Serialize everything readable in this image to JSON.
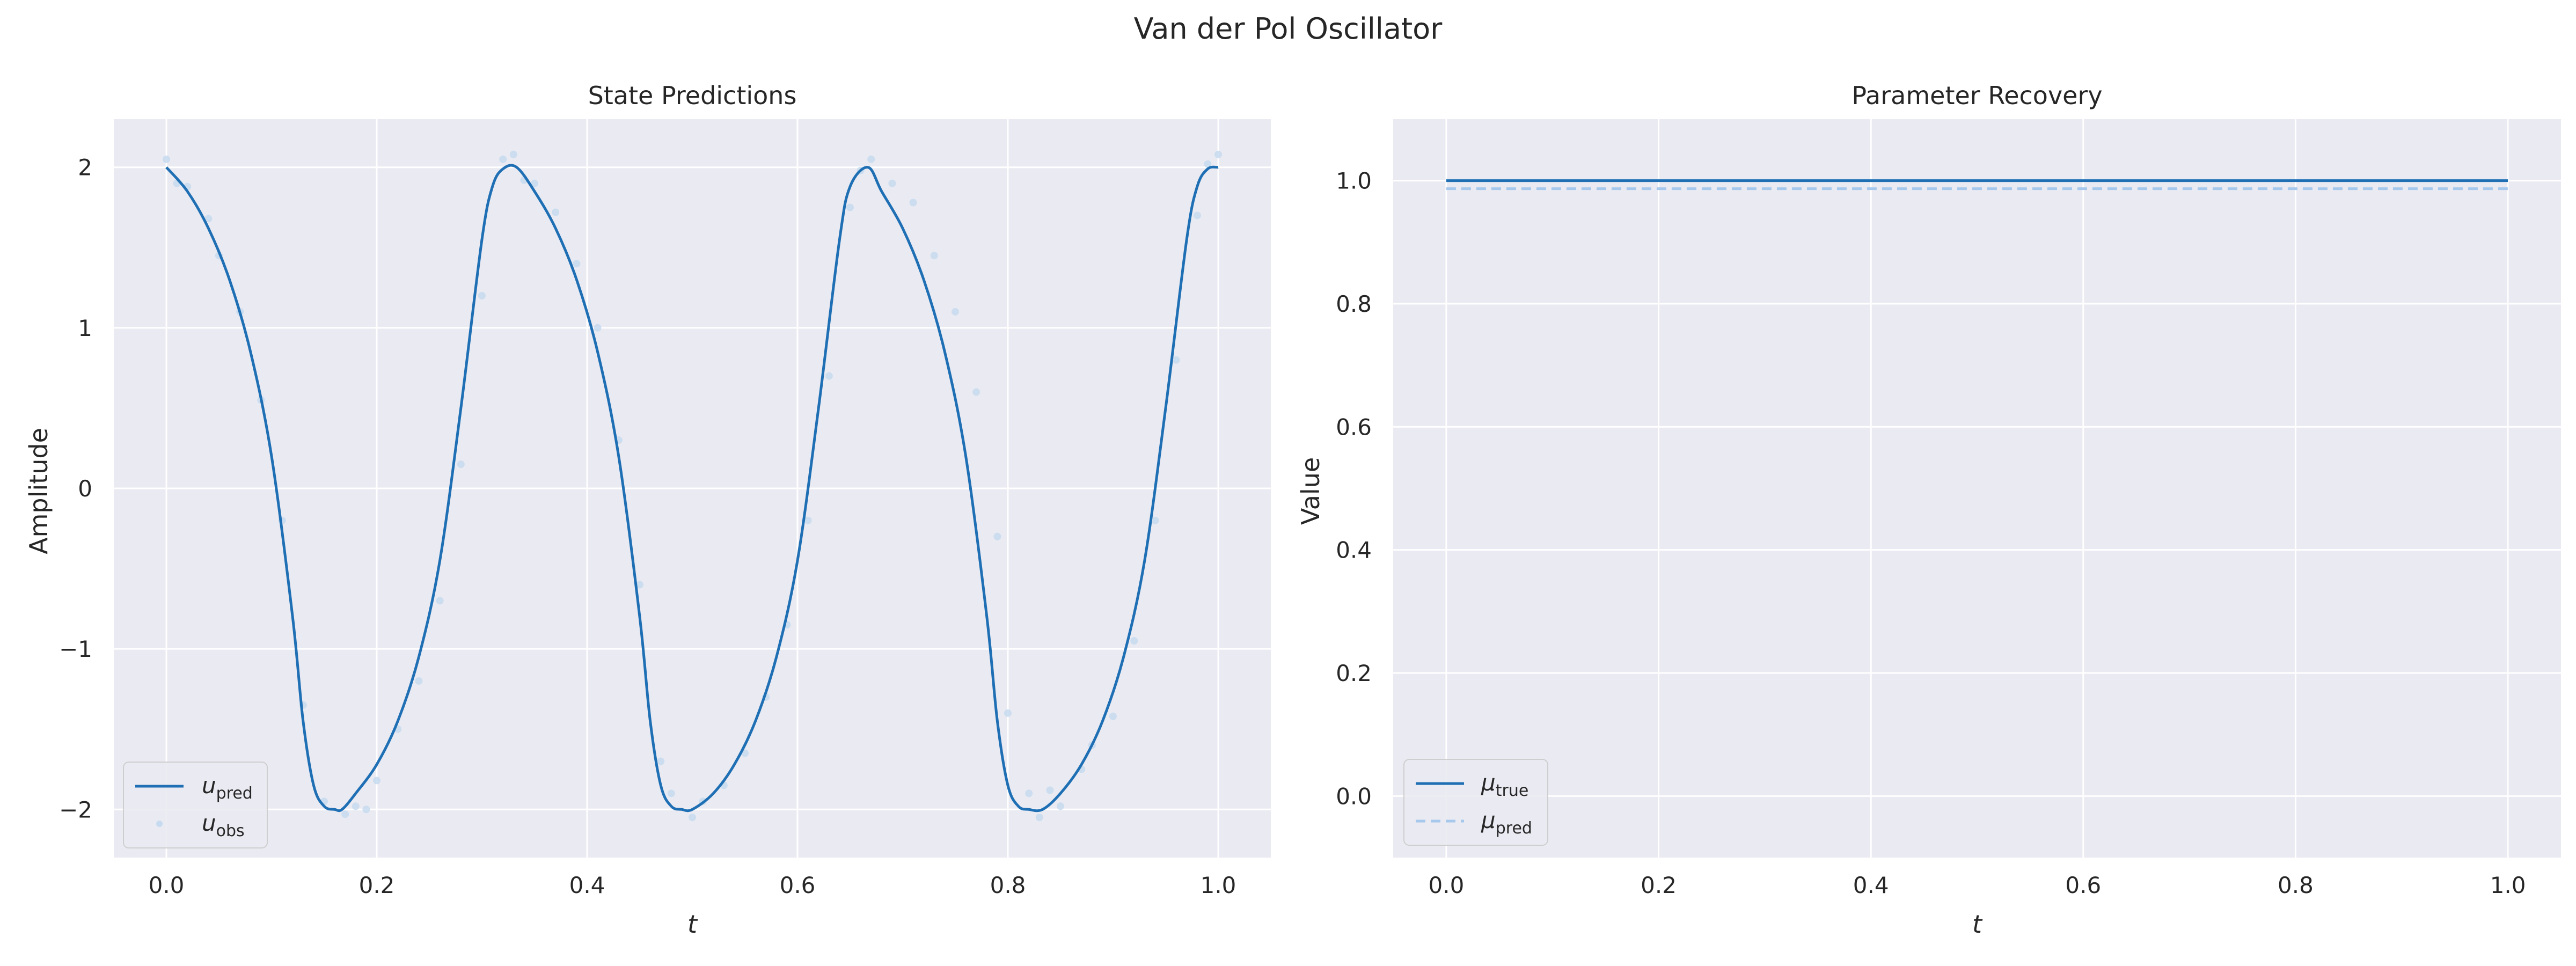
{
  "figure": {
    "suptitle": "Van der Pol Oscillator"
  },
  "colors": {
    "background": "#eaeaf2",
    "grid": "#ffffff",
    "pred_line": "#1f6fb4",
    "obs_points": "#c6dbef",
    "mu_true": "#1f6fb4",
    "mu_pred": "#a6c8ec"
  },
  "chart_data": [
    {
      "type": "line",
      "title": "State Predictions",
      "xlabel": "t",
      "ylabel": "Amplitude",
      "xlim": [
        -0.05,
        1.05
      ],
      "ylim": [
        -2.3,
        2.3
      ],
      "xticks": [
        0.0,
        0.2,
        0.4,
        0.6,
        0.8,
        1.0
      ],
      "xtick_labels": [
        "0.0",
        "0.2",
        "0.4",
        "0.6",
        "0.8",
        "1.0"
      ],
      "yticks": [
        -2,
        -1,
        0,
        1,
        2
      ],
      "ytick_labels": [
        "−2",
        "−1",
        "0",
        "1",
        "2"
      ],
      "grid": true,
      "legend": {
        "placement": "lower-left",
        "entries": [
          {
            "base": "u",
            "sub": "pred",
            "style": "line"
          },
          {
            "base": "u",
            "sub": "obs",
            "style": "points"
          }
        ]
      },
      "series": [
        {
          "role": "prediction",
          "x": [
            0.0,
            0.02,
            0.04,
            0.06,
            0.08,
            0.1,
            0.12,
            0.13,
            0.14,
            0.15,
            0.16,
            0.167,
            0.18,
            0.2,
            0.22,
            0.24,
            0.26,
            0.28,
            0.3,
            0.31,
            0.32,
            0.333,
            0.35,
            0.37,
            0.39,
            0.41,
            0.43,
            0.45,
            0.46,
            0.47,
            0.48,
            0.49,
            0.5,
            0.52,
            0.54,
            0.56,
            0.58,
            0.6,
            0.62,
            0.64,
            0.65,
            0.667,
            0.68,
            0.7,
            0.72,
            0.74,
            0.76,
            0.78,
            0.79,
            0.8,
            0.81,
            0.82,
            0.833,
            0.85,
            0.87,
            0.89,
            0.91,
            0.93,
            0.95,
            0.97,
            0.98,
            0.99,
            1.0
          ],
          "y": [
            2.0,
            1.85,
            1.62,
            1.3,
            0.85,
            0.2,
            -0.8,
            -1.45,
            -1.85,
            -1.98,
            -2.0,
            -2.0,
            -1.9,
            -1.72,
            -1.45,
            -1.05,
            -0.45,
            0.5,
            1.55,
            1.88,
            1.99,
            2.0,
            1.85,
            1.62,
            1.3,
            0.85,
            0.2,
            -0.8,
            -1.45,
            -1.85,
            -1.98,
            -2.0,
            -2.0,
            -1.9,
            -1.72,
            -1.45,
            -1.05,
            -0.45,
            0.5,
            1.55,
            1.88,
            2.0,
            1.85,
            1.62,
            1.3,
            0.85,
            0.2,
            -0.8,
            -1.45,
            -1.85,
            -1.98,
            -2.0,
            -2.0,
            -1.9,
            -1.72,
            -1.45,
            -1.05,
            -0.45,
            0.5,
            1.55,
            1.88,
            1.99,
            2.0
          ]
        },
        {
          "role": "observations",
          "x": [
            0.0,
            0.01,
            0.02,
            0.04,
            0.05,
            0.07,
            0.09,
            0.11,
            0.13,
            0.15,
            0.17,
            0.18,
            0.19,
            0.2,
            0.22,
            0.24,
            0.26,
            0.28,
            0.3,
            0.32,
            0.33,
            0.34,
            0.35,
            0.37,
            0.39,
            0.41,
            0.43,
            0.45,
            0.47,
            0.48,
            0.5,
            0.51,
            0.53,
            0.55,
            0.57,
            0.59,
            0.61,
            0.63,
            0.65,
            0.66,
            0.67,
            0.69,
            0.71,
            0.73,
            0.75,
            0.77,
            0.79,
            0.8,
            0.82,
            0.83,
            0.84,
            0.85,
            0.87,
            0.88,
            0.9,
            0.92,
            0.94,
            0.96,
            0.98,
            0.99,
            1.0
          ],
          "y": [
            2.05,
            1.9,
            1.88,
            1.68,
            1.45,
            1.1,
            0.55,
            -0.2,
            -1.35,
            -1.95,
            -2.03,
            -1.98,
            -2.0,
            -1.82,
            -1.5,
            -1.2,
            -0.7,
            0.15,
            1.2,
            2.05,
            2.08,
            1.92,
            1.9,
            1.72,
            1.4,
            1.0,
            0.3,
            -0.6,
            -1.7,
            -1.9,
            -2.05,
            -1.95,
            -1.85,
            -1.65,
            -1.3,
            -0.85,
            -0.2,
            0.7,
            1.75,
            1.98,
            2.05,
            1.9,
            1.78,
            1.45,
            1.1,
            0.6,
            -0.3,
            -1.4,
            -1.9,
            -2.05,
            -1.88,
            -1.98,
            -1.75,
            -1.6,
            -1.42,
            -0.95,
            -0.2,
            0.8,
            1.7,
            2.02,
            2.08
          ]
        }
      ]
    },
    {
      "type": "line",
      "title": "Parameter Recovery",
      "xlabel": "t",
      "ylabel": "Value",
      "xlim": [
        -0.05,
        1.05
      ],
      "ylim": [
        -0.1,
        1.1
      ],
      "xticks": [
        0.0,
        0.2,
        0.4,
        0.6,
        0.8,
        1.0
      ],
      "xtick_labels": [
        "0.0",
        "0.2",
        "0.4",
        "0.6",
        "0.8",
        "1.0"
      ],
      "yticks": [
        0.0,
        0.2,
        0.4,
        0.6,
        0.8,
        1.0
      ],
      "ytick_labels": [
        "0.0",
        "0.2",
        "0.4",
        "0.6",
        "0.8",
        "1.0"
      ],
      "grid": true,
      "legend": {
        "placement": "lower-left",
        "entries": [
          {
            "base": "μ",
            "sub": "true",
            "style": "line"
          },
          {
            "base": "μ",
            "sub": "pred",
            "style": "dashed"
          }
        ]
      },
      "series": [
        {
          "role": "true",
          "x": [
            0.0,
            1.0
          ],
          "y": [
            1.0,
            1.0
          ]
        },
        {
          "role": "pred",
          "x": [
            0.0,
            1.0
          ],
          "y": [
            0.987,
            0.987
          ]
        }
      ]
    }
  ]
}
